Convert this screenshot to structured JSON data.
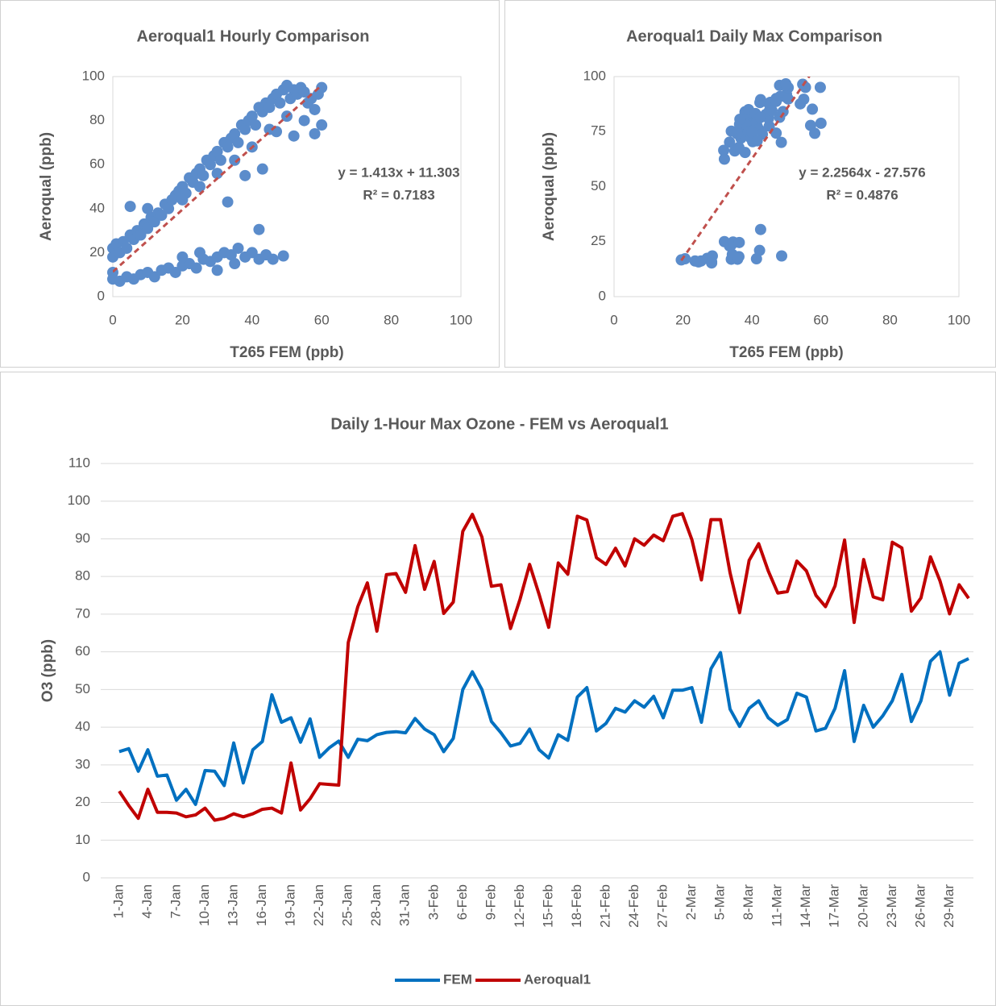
{
  "chart_data": [
    {
      "type": "scatter",
      "title": "Aeroqual1 Hourly Comparison",
      "xlabel": "T265 FEM (ppb)",
      "ylabel": "Aeroqual (ppb)",
      "color": "#5b8ccb",
      "x": [
        0,
        0,
        1,
        2,
        3,
        4,
        5,
        6,
        7,
        8,
        9,
        10,
        11,
        12,
        13,
        14,
        15,
        16,
        17,
        18,
        19,
        20,
        21,
        22,
        23,
        24,
        25,
        26,
        27,
        28,
        29,
        30,
        31,
        32,
        33,
        34,
        35,
        36,
        37,
        38,
        39,
        40,
        41,
        42,
        43,
        44,
        45,
        46,
        47,
        48,
        49,
        50,
        51,
        52,
        53,
        54,
        55,
        56,
        57,
        58,
        59,
        60,
        60,
        55,
        50,
        45,
        40,
        35,
        30,
        25,
        20,
        10,
        5,
        33,
        47,
        52,
        58,
        43,
        38,
        0,
        0,
        2,
        4,
        6,
        8,
        10,
        12,
        14,
        16,
        18,
        20,
        22,
        24,
        26,
        28,
        30,
        32,
        34,
        36,
        38,
        40,
        42,
        44,
        46,
        49,
        42,
        30,
        35,
        25,
        20
      ],
      "y": [
        22,
        18,
        24,
        20,
        25,
        22,
        28,
        26,
        30,
        28,
        33,
        31,
        36,
        34,
        38,
        37,
        42,
        40,
        44,
        46,
        48,
        50,
        47,
        54,
        52,
        56,
        58,
        55,
        62,
        60,
        64,
        66,
        62,
        70,
        68,
        72,
        74,
        70,
        78,
        76,
        80,
        82,
        78,
        86,
        84,
        88,
        86,
        90,
        92,
        88,
        94,
        96,
        90,
        94,
        92,
        95,
        93,
        88,
        90,
        85,
        92,
        95,
        78,
        80,
        82,
        76,
        68,
        62,
        56,
        50,
        44,
        40,
        41,
        43,
        75,
        73,
        74,
        58,
        55,
        8,
        11,
        7,
        9,
        8,
        10,
        11,
        9,
        12,
        13,
        11,
        14,
        15,
        13,
        17,
        16,
        18,
        20,
        19,
        22,
        18,
        20,
        17,
        19,
        17,
        18.5,
        30.5,
        12,
        15,
        20,
        18
      ],
      "trendline": {
        "slope": 1.413,
        "intercept": 11.303,
        "equation": "y = 1.413x + 11.303",
        "r2": "R² = 0.7183",
        "color": "#c0504d"
      },
      "xlim": [
        0,
        100
      ],
      "xticks": [
        0,
        20,
        40,
        60,
        80,
        100
      ],
      "ylim": [
        0,
        100
      ],
      "yticks": [
        0,
        20,
        40,
        60,
        80,
        100
      ],
      "grid": false
    },
    {
      "type": "scatter",
      "title": "Aeroqual1 Daily Max Comparison",
      "xlabel": "T265 FEM (ppb)",
      "ylabel": "Aeroqual (ppb)",
      "color": "#5b8ccb",
      "x": [
        33.5,
        34.3,
        28.3,
        34,
        27,
        27.3,
        20.6,
        23.5,
        19.5,
        28.5,
        28.3,
        24.5,
        35.8,
        25.2,
        34,
        36.2,
        48.6,
        41.3,
        42.5,
        36,
        42.2,
        32,
        34.5,
        36.3,
        32,
        36.8,
        36.4,
        38,
        38.6,
        38.8,
        38.5,
        42.3,
        39.5,
        38,
        33.5,
        37,
        50,
        54.7,
        50,
        41.5,
        38.5,
        35,
        35.7,
        39.5,
        34,
        31.8,
        38,
        36.5,
        48,
        50.5,
        39,
        41,
        45,
        44,
        47,
        45.3,
        48.2,
        42.5,
        49.8,
        49.8,
        50.5,
        41.3,
        55.5,
        59.8,
        44.8,
        40.2,
        45,
        47,
        42.5,
        40.5,
        42,
        49,
        48,
        39,
        39.7,
        45,
        55,
        36.2,
        45.8,
        40,
        43,
        47,
        54,
        41.5,
        47,
        57.5,
        60,
        48.5,
        57,
        58.2
      ],
      "y": [
        23,
        19.2,
        15.8,
        23.5,
        17.4,
        17.4,
        17.2,
        16.2,
        16.7,
        18.5,
        15.3,
        15.8,
        17,
        16.2,
        17,
        18.2,
        18.5,
        17.2,
        30.5,
        18,
        21,
        25,
        24.8,
        24.6,
        62.5,
        72,
        78.3,
        65.5,
        80.5,
        80.8,
        75.8,
        88.2,
        76.6,
        84,
        70.2,
        73.2,
        92,
        96.5,
        90.5,
        77.4,
        77.8,
        66.2,
        74,
        83.2,
        75.2,
        66.5,
        83.6,
        80.6,
        96,
        95,
        85,
        83.2,
        87.5,
        82.8,
        90,
        88.3,
        91,
        89.5,
        96,
        96.7,
        89.8,
        79.1,
        95.1,
        95.1,
        81,
        70.4,
        84.3,
        88.7,
        81.5,
        75.6,
        76,
        84.1,
        81.5,
        75,
        72,
        77.5,
        89.7,
        67.8,
        84.5,
        74.6,
        73.8,
        89.1,
        87.6,
        70.8,
        74.3,
        85.2,
        78.8,
        70.1,
        77.8,
        74.2
      ],
      "trendline": {
        "slope": 2.2564,
        "intercept": -27.576,
        "equation": "y = 2.2564x - 27.576",
        "r2": "R² = 0.4876",
        "color": "#c0504d"
      },
      "xlim": [
        0,
        100
      ],
      "xticks": [
        0,
        20,
        40,
        60,
        80,
        100
      ],
      "ylim": [
        0,
        100
      ],
      "yticks": [
        0,
        25,
        50,
        75,
        100
      ],
      "grid": false
    },
    {
      "type": "line",
      "title": "Daily 1-Hour Max Ozone - FEM vs Aeroqual1",
      "ylabel": "O3 (ppb)",
      "legend": "bottom",
      "categories": [
        "1-Jan",
        null,
        null,
        "4-Jan",
        null,
        null,
        "7-Jan",
        null,
        null,
        "10-Jan",
        null,
        null,
        "13-Jan",
        null,
        null,
        "16-Jan",
        null,
        null,
        "19-Jan",
        null,
        null,
        "22-Jan",
        null,
        null,
        "25-Jan",
        null,
        null,
        "28-Jan",
        null,
        null,
        "31-Jan",
        null,
        null,
        "3-Feb",
        null,
        null,
        "6-Feb",
        null,
        null,
        "9-Feb",
        null,
        null,
        "12-Feb",
        null,
        null,
        "15-Feb",
        null,
        null,
        "18-Feb",
        null,
        null,
        "21-Feb",
        null,
        null,
        "24-Feb",
        null,
        null,
        "27-Feb",
        null,
        null,
        "2-Mar",
        null,
        null,
        "5-Mar",
        null,
        null,
        "8-Mar",
        null,
        null,
        "11-Mar",
        null,
        null,
        "14-Mar",
        null,
        null,
        "17-Mar",
        null,
        null,
        "20-Mar",
        null,
        null,
        "23-Mar",
        null,
        null,
        "26-Mar",
        null,
        null,
        "29-Mar",
        null,
        null
      ],
      "series": [
        {
          "name": "FEM",
          "color": "#0070c0",
          "values": [
            33.5,
            34.3,
            28.3,
            34,
            27,
            27.3,
            20.6,
            23.5,
            19.5,
            28.5,
            28.3,
            24.5,
            35.8,
            25.2,
            34,
            36.2,
            48.6,
            41.3,
            42.5,
            36,
            42.2,
            32,
            34.5,
            36.3,
            32,
            36.8,
            36.4,
            38,
            38.6,
            38.8,
            38.5,
            42.3,
            39.5,
            38,
            33.5,
            37,
            50,
            54.7,
            50,
            41.5,
            38.5,
            35,
            35.7,
            39.5,
            34,
            31.8,
            38,
            36.5,
            48,
            50.5,
            39,
            41,
            45,
            44,
            47,
            45.3,
            48.2,
            42.5,
            49.8,
            49.8,
            50.5,
            41.3,
            55.5,
            59.8,
            44.8,
            40.2,
            45,
            47,
            42.5,
            40.5,
            42,
            49,
            48,
            39,
            39.7,
            45,
            55,
            36.2,
            45.8,
            40,
            43,
            47,
            54,
            41.5,
            47,
            57.5,
            60,
            48.5,
            57,
            58.2
          ]
        },
        {
          "name": "Aeroqual1",
          "color": "#c00000",
          "values": [
            23,
            19.2,
            15.8,
            23.5,
            17.4,
            17.4,
            17.2,
            16.2,
            16.7,
            18.5,
            15.3,
            15.8,
            17,
            16.2,
            17,
            18.2,
            18.5,
            17.2,
            30.5,
            18,
            21,
            25,
            24.8,
            24.6,
            62.5,
            72,
            78.3,
            65.5,
            80.5,
            80.8,
            75.8,
            88.2,
            76.6,
            84,
            70.2,
            73.2,
            92,
            96.5,
            90.5,
            77.4,
            77.8,
            66.2,
            74,
            83.2,
            75.2,
            66.5,
            83.6,
            80.6,
            96,
            95,
            85,
            83.2,
            87.5,
            82.8,
            90,
            88.3,
            91,
            89.5,
            96,
            96.7,
            89.8,
            79.1,
            95.1,
            95.1,
            81,
            70.4,
            84.3,
            88.7,
            81.5,
            75.6,
            76,
            84.1,
            81.5,
            75,
            72,
            77.5,
            89.7,
            67.8,
            84.5,
            74.6,
            73.8,
            89.1,
            87.6,
            70.8,
            74.3,
            85.2,
            78.8,
            70.1,
            77.8,
            74.2
          ]
        }
      ],
      "ylim": [
        0,
        110
      ],
      "yticks": [
        0,
        10,
        20,
        30,
        40,
        50,
        60,
        70,
        80,
        90,
        100,
        110
      ],
      "grid": true
    }
  ]
}
